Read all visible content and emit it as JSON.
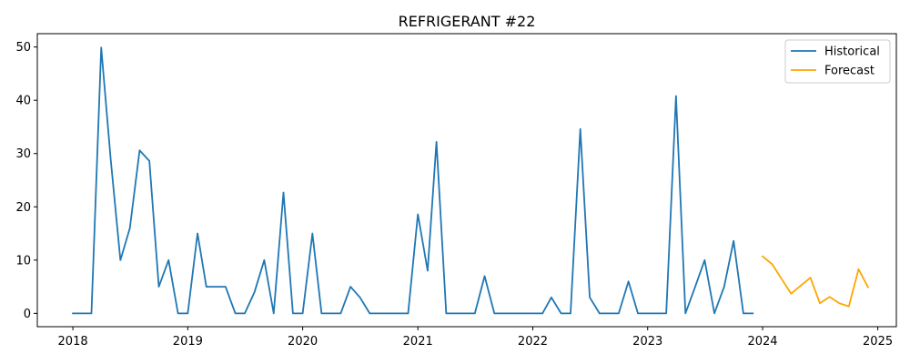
{
  "chart_data": {
    "type": "line",
    "title": "REFRIGERANT #22",
    "xlabel": "",
    "ylabel": "",
    "x_ticks": [
      "2018",
      "2019",
      "2020",
      "2021",
      "2022",
      "2023",
      "2024",
      "2025"
    ],
    "y_ticks": [
      0,
      10,
      20,
      30,
      40,
      50
    ],
    "xlim": [
      "2017-09-10",
      "2025-03-01"
    ],
    "ylim": [
      -2.5,
      52.5
    ],
    "grid": false,
    "legend_position": "top-right",
    "series": [
      {
        "name": "Historical",
        "color": "#1f77b4",
        "points": [
          [
            "2018-01-01",
            0
          ],
          [
            "2018-02-01",
            0
          ],
          [
            "2018-03-01",
            0
          ],
          [
            "2018-04-01",
            49.9
          ],
          [
            "2018-05-01",
            29
          ],
          [
            "2018-06-01",
            10
          ],
          [
            "2018-07-01",
            16
          ],
          [
            "2018-08-01",
            30.6
          ],
          [
            "2018-09-01",
            28.6
          ],
          [
            "2018-10-01",
            5
          ],
          [
            "2018-11-01",
            10
          ],
          [
            "2018-12-01",
            0
          ],
          [
            "2019-01-01",
            0
          ],
          [
            "2019-02-01",
            15
          ],
          [
            "2019-03-01",
            5
          ],
          [
            "2019-04-01",
            5
          ],
          [
            "2019-05-01",
            5
          ],
          [
            "2019-06-01",
            0
          ],
          [
            "2019-07-01",
            0
          ],
          [
            "2019-08-01",
            4
          ],
          [
            "2019-09-01",
            10
          ],
          [
            "2019-10-01",
            0
          ],
          [
            "2019-11-01",
            22.7
          ],
          [
            "2019-12-01",
            0
          ],
          [
            "2020-01-01",
            0
          ],
          [
            "2020-02-01",
            15
          ],
          [
            "2020-03-01",
            0
          ],
          [
            "2020-04-01",
            0
          ],
          [
            "2020-05-01",
            0
          ],
          [
            "2020-06-01",
            5
          ],
          [
            "2020-07-01",
            3
          ],
          [
            "2020-08-01",
            0
          ],
          [
            "2020-09-01",
            0
          ],
          [
            "2020-10-01",
            0
          ],
          [
            "2020-11-01",
            0
          ],
          [
            "2020-12-01",
            0
          ],
          [
            "2021-01-01",
            18.6
          ],
          [
            "2021-02-01",
            8
          ],
          [
            "2021-03-01",
            32.2
          ],
          [
            "2021-04-01",
            0
          ],
          [
            "2021-05-01",
            0
          ],
          [
            "2021-06-01",
            0
          ],
          [
            "2021-07-01",
            0
          ],
          [
            "2021-08-01",
            7
          ],
          [
            "2021-09-01",
            0
          ],
          [
            "2021-10-01",
            0
          ],
          [
            "2021-11-01",
            0
          ],
          [
            "2021-12-01",
            0
          ],
          [
            "2022-01-01",
            0
          ],
          [
            "2022-02-01",
            0
          ],
          [
            "2022-03-01",
            3
          ],
          [
            "2022-04-01",
            0
          ],
          [
            "2022-05-01",
            0
          ],
          [
            "2022-06-01",
            34.6
          ],
          [
            "2022-07-01",
            3
          ],
          [
            "2022-08-01",
            0
          ],
          [
            "2022-09-01",
            0
          ],
          [
            "2022-10-01",
            0
          ],
          [
            "2022-11-01",
            6
          ],
          [
            "2022-12-01",
            0
          ],
          [
            "2023-01-01",
            0
          ],
          [
            "2023-02-01",
            0
          ],
          [
            "2023-03-01",
            0
          ],
          [
            "2023-04-01",
            40.8
          ],
          [
            "2023-05-01",
            0
          ],
          [
            "2023-06-01",
            5
          ],
          [
            "2023-07-01",
            10
          ],
          [
            "2023-08-01",
            0
          ],
          [
            "2023-09-01",
            5
          ],
          [
            "2023-10-01",
            13.6
          ],
          [
            "2023-11-01",
            0
          ],
          [
            "2023-12-01",
            0
          ]
        ]
      },
      {
        "name": "Forecast",
        "color": "#ffa500",
        "points": [
          [
            "2024-01-01",
            10.7
          ],
          [
            "2024-02-01",
            9.2
          ],
          [
            "2024-03-01",
            6.5
          ],
          [
            "2024-04-01",
            3.7
          ],
          [
            "2024-05-01",
            5.2
          ],
          [
            "2024-06-01",
            6.7
          ],
          [
            "2024-07-01",
            1.9
          ],
          [
            "2024-08-01",
            3.1
          ],
          [
            "2024-09-01",
            1.9
          ],
          [
            "2024-10-01",
            1.3
          ],
          [
            "2024-11-01",
            8.3
          ],
          [
            "2024-12-01",
            4.9
          ]
        ]
      }
    ]
  }
}
